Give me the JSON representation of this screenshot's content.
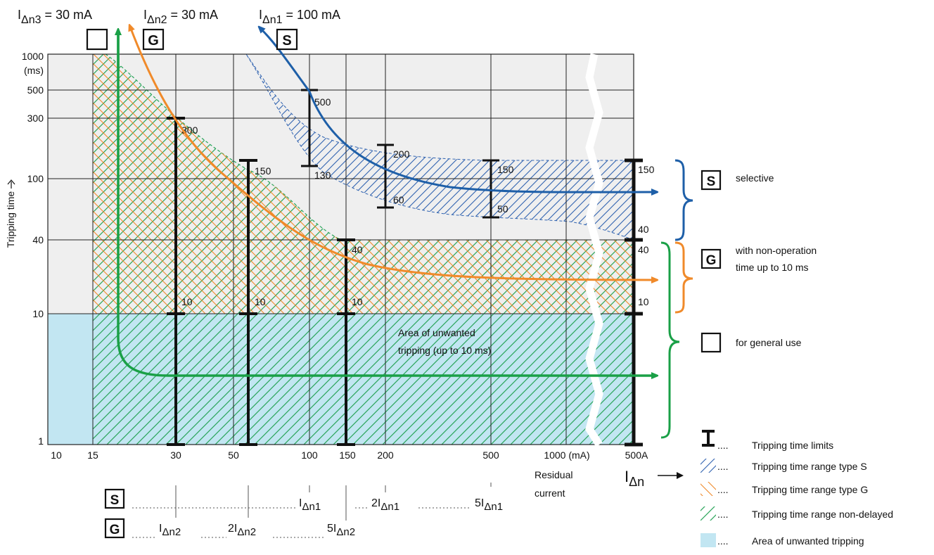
{
  "colors": {
    "plot_background": "#efefef",
    "unwanted_area": "#c2e6f2",
    "non_delayed_hatch": "#2aa55a",
    "type_g_hatch": "#f08a2a",
    "type_s_hatch": "#2f62b0",
    "limit_bar": "#111111",
    "arrow_s": "#1e5fa8",
    "arrow_g": "#f08a2a",
    "arrow_general": "#1aa047",
    "grid": "#222222"
  },
  "header": {
    "labels": [
      {
        "I": "I",
        "sub": "Δn3",
        "rest": " = 30 mA"
      },
      {
        "I": "I",
        "sub": "Δn2",
        "rest": " = 30 mA"
      },
      {
        "I": "I",
        "sub": "Δn1",
        "rest": " = 100 mA"
      }
    ],
    "boxes": [
      "",
      "G",
      "S"
    ]
  },
  "chart_data": {
    "type": "line",
    "ylabel": "Tripping time",
    "yunit_label": "(ms)",
    "xlabel": "Residual current",
    "x_ticks": [
      "10",
      "15",
      "30",
      "50",
      "100",
      "150",
      "200",
      "500",
      "1000 (mA)",
      "500A"
    ],
    "y_ticks": [
      "1000",
      "500",
      "300",
      "100",
      "40",
      "10",
      "1"
    ],
    "x_scale": "log (axis break between 1000 mA and 500 A)",
    "y_scale": "log",
    "ylim": [
      1,
      1000
    ],
    "grid": true,
    "regions": [
      {
        "name": "Area of unwanted tripping (up to 10 ms)",
        "label_line1": "Area of unwanted",
        "label_line2": "tripping (up to 10 ms)",
        "y_range": [
          1,
          10
        ]
      },
      {
        "name": "Tripping time range type S",
        "band": "between 130-500 ms at 100 mA and 40-150 ms at 500 A"
      },
      {
        "name": "Tripping time range type G",
        "band": "10 ms to 40-300 ms"
      },
      {
        "name": "Tripping time range non-delayed",
        "band": "1 ms to 40-300 ms"
      }
    ],
    "limit_bars": [
      {
        "x": "30",
        "min": 1,
        "max": 300,
        "labels": [
          "300",
          "10"
        ]
      },
      {
        "x": "60",
        "min": 1,
        "max": 150,
        "labels": [
          "150",
          "10"
        ]
      },
      {
        "x": "150",
        "min": 1,
        "max": 40,
        "labels": [
          "40",
          "10"
        ]
      },
      {
        "x": "100",
        "min": 130,
        "max": 500,
        "labels": [
          "500",
          "130"
        ]
      },
      {
        "x": "200",
        "min": 60,
        "max": 200,
        "labels": [
          "200",
          "60"
        ]
      },
      {
        "x": "500",
        "min": 50,
        "max": 150,
        "labels": [
          "150",
          "50"
        ]
      },
      {
        "x": "500A",
        "min": 1,
        "max": 150,
        "labels": [
          "150",
          "40",
          "40",
          "10"
        ]
      }
    ],
    "curves": [
      {
        "name": "S",
        "description": "from 1000 ms at ~80 mA falling to ~80 ms"
      },
      {
        "name": "G",
        "description": "from 1000 ms at ~22 mA falling to ~25 ms"
      },
      {
        "name": "general",
        "description": "vertical at ~20 mA then ~4 ms"
      }
    ]
  },
  "under_axis": {
    "S_box": "S",
    "G_box": "G",
    "s_marks": [
      {
        "pre": "I",
        "sub": "Δn1"
      },
      {
        "pre": "2I",
        "sub": "Δn1"
      },
      {
        "pre": "5I",
        "sub": "Δn1"
      }
    ],
    "g_marks": [
      {
        "pre": "I",
        "sub": "Δn2"
      },
      {
        "pre": "2I",
        "sub": "Δn2"
      },
      {
        "pre": "5I",
        "sub": "Δn2"
      }
    ],
    "ian_label": {
      "I": "I",
      "sub": "Δn"
    },
    "residual_line1": "Residual",
    "residual_line2": "current"
  },
  "right_labels": {
    "S_box": "S",
    "S_text": "selective",
    "G_box": "G",
    "G_text_line1": "with non-operation",
    "G_text_line2": "time up to 10 ms",
    "general_text": "for general use"
  },
  "legend": [
    {
      "icon": "limits",
      "dots": "....",
      "text": "Tripping time limits"
    },
    {
      "icon": "hatch-s",
      "dots": "....",
      "text": "Tripping time range type S"
    },
    {
      "icon": "hatch-g",
      "dots": "....",
      "text": "Tripping time range type G"
    },
    {
      "icon": "hatch-n",
      "dots": "....",
      "text": "Tripping time range non-delayed"
    },
    {
      "icon": "area",
      "dots": "....",
      "text": "Area of unwanted tripping"
    }
  ]
}
